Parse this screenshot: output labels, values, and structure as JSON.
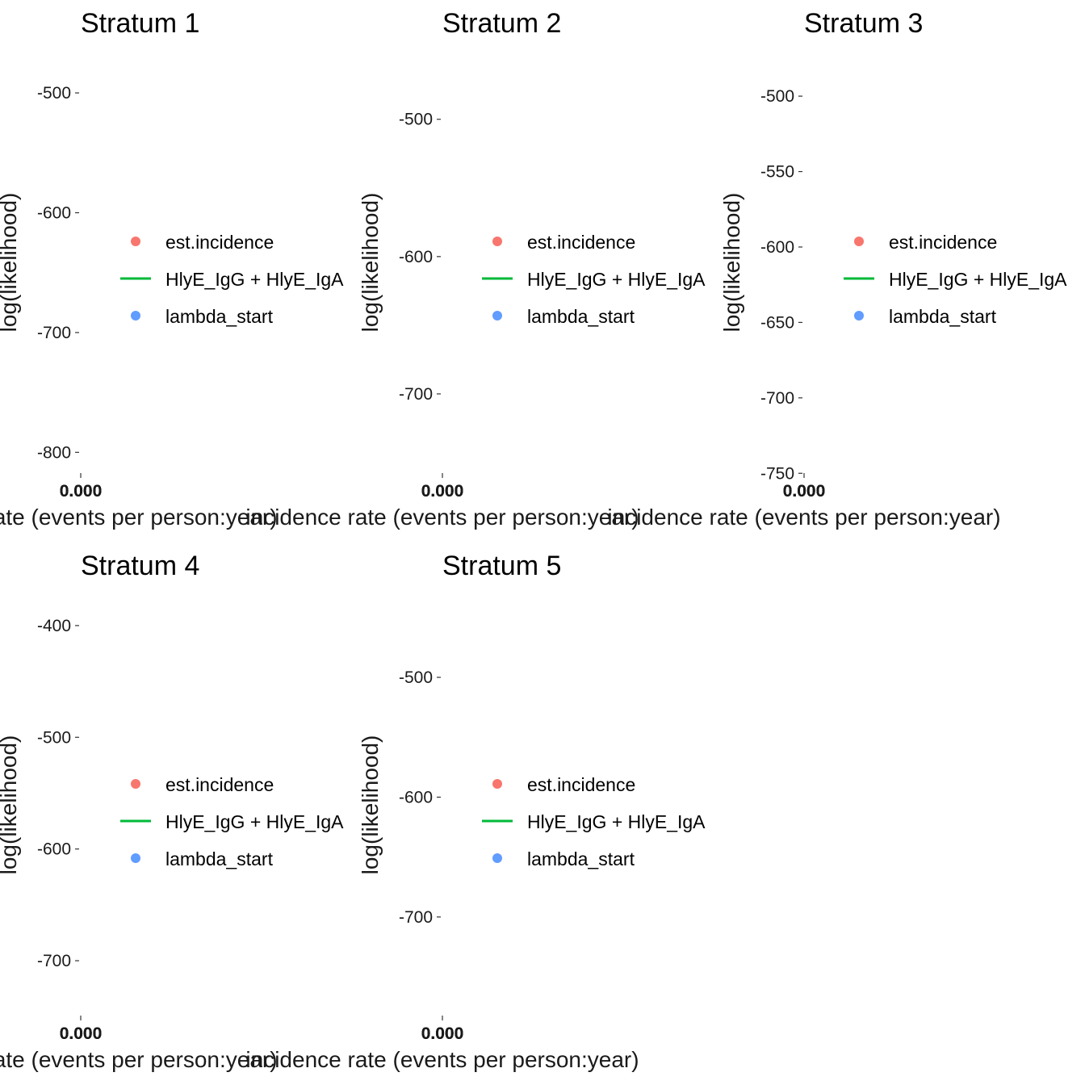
{
  "chart_data": [
    {
      "type": "line",
      "title": "Stratum 1",
      "xlabel": "incidence rate (events per person:year)",
      "ylabel": "log(likelihood)",
      "x_ticks": [
        "0.000",
        "0.000",
        "0.000"
      ],
      "y_ticks": [
        -500,
        -600,
        -700,
        -800
      ],
      "ylim": [
        -820,
        -475
      ],
      "legend": [
        "est.incidence",
        "HlyE_IgG + HlyE_IgA",
        "lambda_start"
      ],
      "legend_position": "right",
      "series": []
    },
    {
      "type": "line",
      "title": "Stratum 2",
      "xlabel": "incidence rate (events per person:year)",
      "ylabel": "log(likelihood)",
      "x_ticks": [
        "0.000",
        "0.000",
        "0.000"
      ],
      "y_ticks": [
        -500,
        -600,
        -700
      ],
      "ylim": [
        -760,
        -459
      ],
      "legend": [
        "est.incidence",
        "HlyE_IgG + HlyE_IgA",
        "lambda_start"
      ],
      "legend_position": "right",
      "series": []
    },
    {
      "type": "line",
      "title": "Stratum 3",
      "xlabel": "incidence rate (events per person:year)",
      "ylabel": "log(likelihood)",
      "x_ticks": [
        "0.000",
        "0.000",
        "0.000"
      ],
      "y_ticks": [
        -500,
        -550,
        -600,
        -650,
        -700,
        -750
      ],
      "ylim": [
        -752,
        -478
      ],
      "legend": [
        "est.incidence",
        "HlyE_IgG + HlyE_IgA",
        "lambda_start"
      ],
      "legend_position": "right",
      "series": []
    },
    {
      "type": "line",
      "title": "Stratum 4",
      "xlabel": "incidence rate (events per person:year)",
      "ylabel": "log(likelihood)",
      "x_ticks": [
        "0.000",
        "0.000",
        "0.000"
      ],
      "y_ticks": [
        -400,
        -500,
        -600,
        -700
      ],
      "ylim": [
        -752,
        -382
      ],
      "legend": [
        "est.incidence",
        "HlyE_IgG + HlyE_IgA",
        "lambda_start"
      ],
      "legend_position": "right",
      "series": []
    },
    {
      "type": "line",
      "title": "Stratum 5",
      "xlabel": "incidence rate (events per person:year)",
      "ylabel": "log(likelihood)",
      "x_ticks": [
        "0.000",
        "0.000",
        "0.000"
      ],
      "y_ticks": [
        -500,
        -600,
        -700
      ],
      "ylim": [
        -785,
        -440
      ],
      "legend": [
        "est.incidence",
        "HlyE_IgG + HlyE_IgA",
        "lambda_start"
      ],
      "legend_position": "right",
      "series": []
    }
  ],
  "legend_colors": {
    "est.incidence": "#F8766D",
    "HlyE_IgG + HlyE_IgA": "#00BA38",
    "lambda_start": "#619CFF"
  },
  "legend_shapes": {
    "est.incidence": "point",
    "HlyE_IgG + HlyE_IgA": "line",
    "lambda_start": "point"
  }
}
